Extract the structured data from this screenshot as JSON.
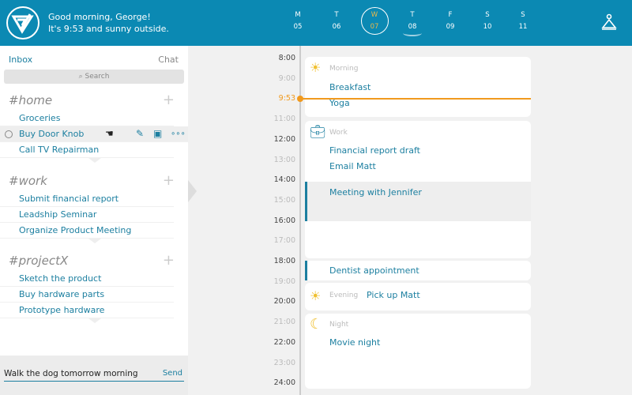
{
  "header": {
    "greeting": "Good morning, George!",
    "status": "It's 9:53 and sunny outside.",
    "days": [
      {
        "letter": "M",
        "date": "05"
      },
      {
        "letter": "T",
        "date": "06"
      },
      {
        "letter": "W",
        "date": "07",
        "selected": true
      },
      {
        "letter": "T",
        "date": "08"
      },
      {
        "letter": "F",
        "date": "09"
      },
      {
        "letter": "S",
        "date": "10"
      },
      {
        "letter": "S",
        "date": "11"
      }
    ],
    "profile_icon": "meditating-person-icon"
  },
  "sidebar": {
    "inbox": "Inbox",
    "chat": "Chat",
    "search_placeholder": "Search",
    "sections": [
      {
        "title": "#home",
        "items": [
          "Groceries",
          "Buy Door Knob",
          "Call TV Repairman"
        ]
      },
      {
        "title": "#work",
        "items": [
          "Submit financial report",
          "Leadship Seminar",
          "Organize Product Meeting"
        ]
      },
      {
        "title": "#projectX",
        "items": [
          "Sketch the product",
          "Buy hardware parts",
          "Prototype hardware"
        ]
      }
    ],
    "compose_value": "Walk the dog tomorrow morning",
    "send": "Send"
  },
  "timeline": {
    "labels": [
      "8:00",
      "9:00",
      "9:53",
      "11:00",
      "12:00",
      "13:00",
      "14:00",
      "15:00",
      "16:00",
      "17:00",
      "18:00",
      "19:00",
      "20:00",
      "21:00",
      "22:00",
      "23:00",
      "24:00"
    ],
    "now": "9:53",
    "now_color": "#f19a1e"
  },
  "schedule": {
    "morning": {
      "label": "Morning",
      "events": [
        "Breakfast",
        "Yoga"
      ]
    },
    "work": {
      "label": "Work",
      "events": [
        "Financial report draft",
        "Email Matt"
      ],
      "meeting": "Meeting with Jennifer"
    },
    "dentist": "Dentist appointment",
    "evening": {
      "label": "Evening",
      "events": [
        "Pick up Matt"
      ]
    },
    "night": {
      "label": "Night",
      "events": [
        "Movie night"
      ]
    }
  },
  "colors": {
    "brand": "#0b89b3",
    "link": "#1c7fa0",
    "accent": "#f19a1e"
  }
}
